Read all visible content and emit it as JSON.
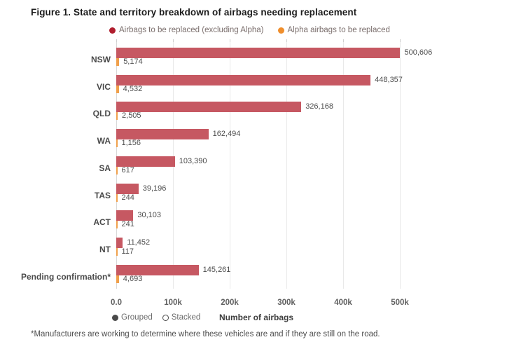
{
  "title": "Figure 1. State and territory breakdown of airbags needing replacement",
  "legend": {
    "items": [
      {
        "label": "Airbags to be replaced (excluding Alpha)",
        "color": "#b01e2e"
      },
      {
        "label": "Alpha airbags to be replaced",
        "color": "#ef8e2c"
      }
    ]
  },
  "chart_data": {
    "type": "bar",
    "orientation": "horizontal",
    "title": "Figure 1. State and territory breakdown of airbags needing replacement",
    "categories": [
      "NSW",
      "VIC",
      "QLD",
      "WA",
      "SA",
      "TAS",
      "ACT",
      "NT",
      "Pending confirmation*"
    ],
    "series": [
      {
        "name": "Airbags to be replaced (excluding Alpha)",
        "color": "#c65862",
        "values": [
          500606,
          448357,
          326168,
          162494,
          103390,
          39196,
          30103,
          11452,
          145261
        ],
        "value_labels": [
          "500,606",
          "448,357",
          "326,168",
          "162,494",
          "103,390",
          "39,196",
          "30,103",
          "11,452",
          "145,261"
        ]
      },
      {
        "name": "Alpha airbags to be replaced",
        "color": "#f0a04b",
        "values": [
          5174,
          4532,
          2505,
          1156,
          617,
          244,
          241,
          117,
          4693
        ],
        "value_labels": [
          "5,174",
          "4,532",
          "2,505",
          "1,156",
          "617",
          "244",
          "241",
          "117",
          "4,693"
        ]
      }
    ],
    "x_ticks": [
      "0.0",
      "100k",
      "200k",
      "300k",
      "400k",
      "500k"
    ],
    "x_tick_values": [
      0,
      100000,
      200000,
      300000,
      400000,
      500000
    ],
    "xlim": [
      0,
      500000
    ],
    "xlabel": "Number of airbags",
    "grid": true,
    "legend_position": "top"
  },
  "controls": {
    "options": [
      {
        "label": "Grouped",
        "selected": true
      },
      {
        "label": "Stacked",
        "selected": false
      }
    ]
  },
  "footnote": "*Manufacturers are working to determine where these vehicles are and if they are still on the road."
}
